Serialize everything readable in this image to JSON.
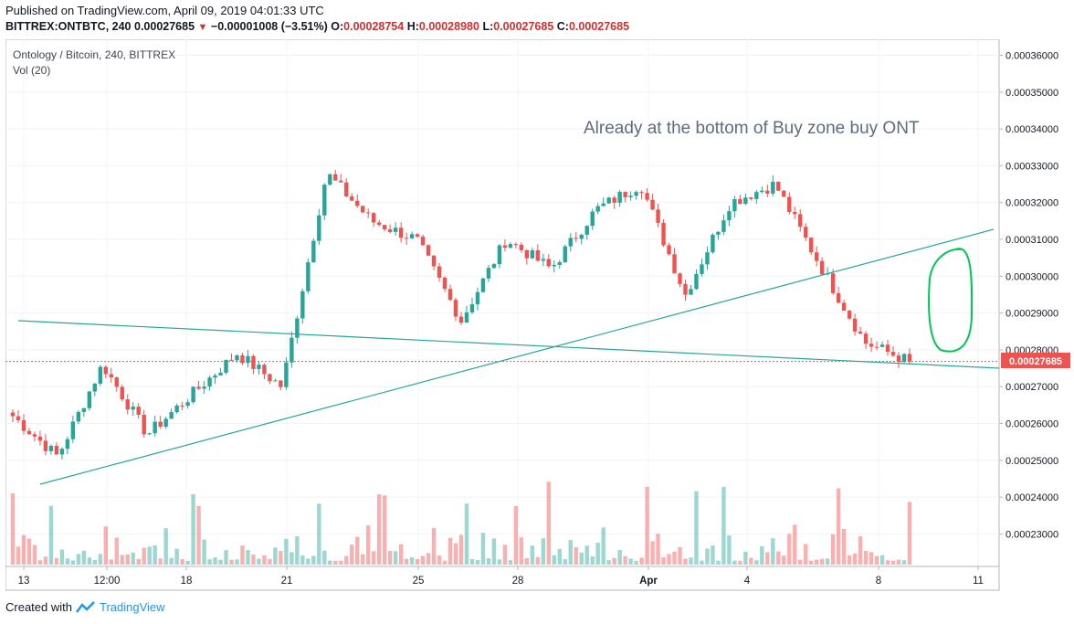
{
  "header": {
    "published": "Published on TradingView.com, April 09, 2019 04:01:33 UTC",
    "symbol": "BITTREX:ONTBTC, 240",
    "last": "0.00027685",
    "change": "−0.00001008 (−3.51%)",
    "o_label": "O:",
    "o_value": "0.00028754",
    "h_label": "H:",
    "h_value": "0.00028980",
    "l_label": "L:",
    "l_value": "0.00027685",
    "c_label": "C:",
    "c_value": "0.00027685"
  },
  "chart": {
    "pair_title": "Ontology / Bitcoin, 240, BITTREX",
    "volume_label": "Vol (20)",
    "annotation": "Already at the bottom of Buy zone buy ONT",
    "last_price_label": "0.00027685"
  },
  "footer": {
    "created_with": "Created with",
    "brand": "TradingView"
  },
  "colors": {
    "up": "#26a69a",
    "down": "#ef5350",
    "trendline": "#26a69a",
    "marker": "#00c853",
    "price_line": "#ef5350"
  },
  "chart_data": {
    "type": "candlestick",
    "title": "Ontology / Bitcoin, 240, BITTREX",
    "ylim": [
      0.000222,
      0.000365
    ],
    "yticks": [
      "0.00023000",
      "0.00024000",
      "0.00025000",
      "0.00026000",
      "0.00027000",
      "0.00028000",
      "0.00029000",
      "0.00030000",
      "0.00031000",
      "0.00032000",
      "0.00033000",
      "0.00034000",
      "0.00035000",
      "0.00036000"
    ],
    "xticks": [
      "13",
      "12:00",
      "18",
      "21",
      "25",
      "28",
      "Apr",
      "4",
      "8",
      "11"
    ],
    "last_price": 0.00027685,
    "approx_close_path": [
      {
        "x": "13",
        "y": 0.000262
      },
      {
        "x": "13",
        "y": 0.000251
      },
      {
        "x": "13",
        "y": 0.000276
      },
      {
        "x": "12:00",
        "y": 0.000257
      },
      {
        "x": "12:00",
        "y": 0.000268
      },
      {
        "x": "18",
        "y": 0.000279
      },
      {
        "x": "18",
        "y": 0.00027
      },
      {
        "x": "21",
        "y": 0.000328
      },
      {
        "x": "21",
        "y": 0.000315
      },
      {
        "x": "25",
        "y": 0.00031
      },
      {
        "x": "25",
        "y": 0.000288
      },
      {
        "x": "28",
        "y": 0.00031
      },
      {
        "x": "28",
        "y": 0.000302
      },
      {
        "x": "Apr",
        "y": 0.000318
      },
      {
        "x": "Apr",
        "y": 0.000325
      },
      {
        "x": "Apr",
        "y": 0.000295
      },
      {
        "x": "4",
        "y": 0.00032
      },
      {
        "x": "4",
        "y": 0.000325
      },
      {
        "x": "8",
        "y": 0.000303
      },
      {
        "x": "8",
        "y": 0.000282
      },
      {
        "x": "8",
        "y": 0.00027685
      }
    ],
    "volume_present": true
  }
}
